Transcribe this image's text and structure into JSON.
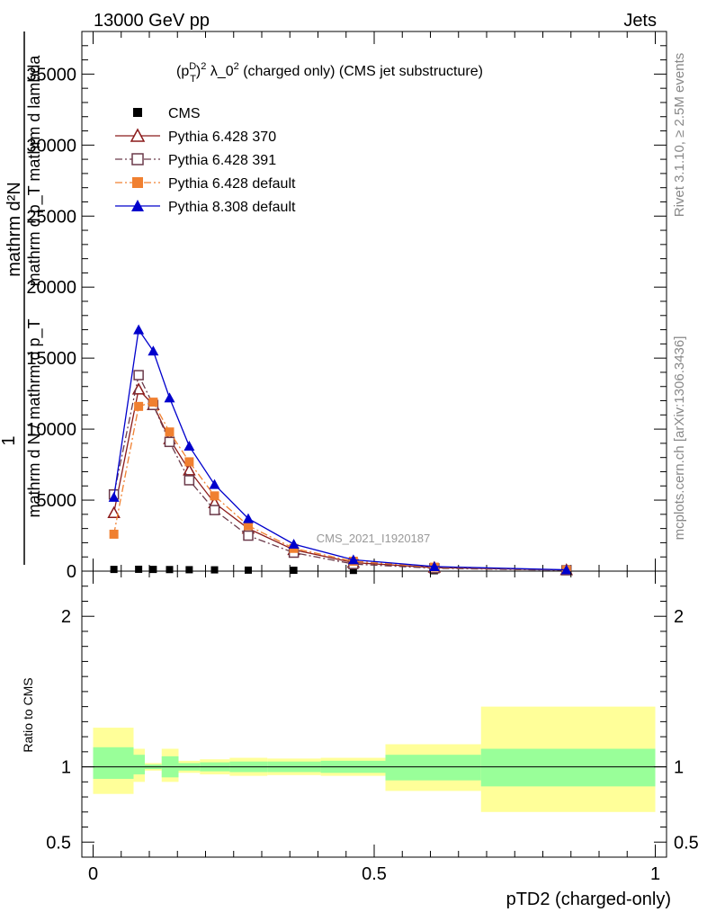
{
  "header": {
    "left": "13000 GeV pp",
    "right": "Jets"
  },
  "title": "(p_T^D)^2 λ_0^2 (charged only) (CMS jet substructure)",
  "title_parts": {
    "p": "(p",
    "sup1": "D",
    "sub1": "T",
    "close": ")",
    "sup2": "2",
    "mid": " λ_0",
    "sup3": "2",
    "tail": " (charged only) (CMS jet substructure)"
  },
  "ylabel_main": {
    "numer": "1          mathrm d²N",
    "denom": "mathrm d N / mathrm d p_T  mathrm d p_T mathrm d lambda",
    "line_top": "mathrm d²N",
    "line_mid": "mathrm d p_T mathrm d lambda",
    "line_one": "1",
    "line_den": "mathrm d N / mathrm d p_T"
  },
  "ylabel_ratio": "Ratio to CMS",
  "xlabel": "pTD2 (charged-only)",
  "side_text_top": "Rivet 3.1.10, ≥ 2.5M events",
  "side_text_bottom": "mcplots.cern.ch [arXiv:1306.3436]",
  "watermark": "CMS_2021_I1920187",
  "colors": {
    "cms": "#000000",
    "py370": "#8b1a1a",
    "py391": "#6b3a4a",
    "py6def": "#f08030",
    "py8def": "#0000cc",
    "band_inner": "#99ff99",
    "band_outer": "#ffff99"
  },
  "chart_data": [
    {
      "type": "line",
      "xlim": [
        -0.02,
        1.02
      ],
      "ylim": [
        0,
        38000
      ],
      "yticks": [
        0,
        5000,
        10000,
        15000,
        20000,
        25000,
        30000,
        35000
      ],
      "ytick_labels": [
        "0",
        "5000",
        "10000",
        "15000",
        "20000",
        "25000",
        "30000",
        "35000"
      ],
      "legend_position": "top-left",
      "x": [
        0.037,
        0.081,
        0.107,
        0.136,
        0.171,
        0.216,
        0.276,
        0.357,
        0.463,
        0.607,
        0.842
      ],
      "series": [
        {
          "name": "CMS",
          "marker": "square-filled",
          "values": [
            120,
            130,
            120,
            110,
            100,
            90,
            70,
            60,
            50,
            30,
            10
          ]
        },
        {
          "name": "Pythia 6.428 370",
          "marker": "triangle-open",
          "dash": "solid",
          "values": [
            4100,
            12800,
            11700,
            9300,
            7100,
            4800,
            3000,
            1500,
            600,
            250,
            80
          ]
        },
        {
          "name": "Pythia 6.428 391",
          "marker": "square-open",
          "dash": "dashdot",
          "values": [
            5400,
            13800,
            11700,
            9100,
            6400,
            4300,
            2500,
            1300,
            500,
            200,
            60
          ]
        },
        {
          "name": "Pythia 6.428 default",
          "marker": "square-filled",
          "dash": "dashdot",
          "values": [
            2600,
            11600,
            11900,
            9800,
            7700,
            5300,
            3200,
            1600,
            700,
            280,
            80
          ]
        },
        {
          "name": "Pythia 8.308 default",
          "marker": "triangle-filled",
          "dash": "solid",
          "values": [
            5200,
            17000,
            15500,
            12200,
            8800,
            6100,
            3700,
            1900,
            800,
            320,
            90
          ]
        }
      ]
    },
    {
      "type": "area",
      "ylabel": "Ratio to CMS",
      "xlabel": "pTD2 (charged-only)",
      "xlim": [
        -0.02,
        1.02
      ],
      "ylim": [
        0.4,
        2.3
      ],
      "xticks": [
        0,
        0.5,
        1
      ],
      "xtick_labels": [
        "0",
        "0.5",
        "1"
      ],
      "yticks": [
        0.5,
        1,
        2
      ],
      "ytick_labels": [
        "0.5",
        "1",
        "2"
      ],
      "bins": [
        {
          "lo": 0.0,
          "hi": 0.072,
          "inner": [
            0.92,
            1.13
          ],
          "outer": [
            0.82,
            1.26
          ]
        },
        {
          "lo": 0.072,
          "hi": 0.092,
          "inner": [
            0.95,
            1.08
          ],
          "outer": [
            0.9,
            1.12
          ]
        },
        {
          "lo": 0.092,
          "hi": 0.122,
          "inner": [
            0.985,
            1.015
          ],
          "outer": [
            0.975,
            1.025
          ]
        },
        {
          "lo": 0.122,
          "hi": 0.152,
          "inner": [
            0.93,
            1.07
          ],
          "outer": [
            0.9,
            1.12
          ]
        },
        {
          "lo": 0.152,
          "hi": 0.19,
          "inner": [
            0.975,
            1.025
          ],
          "outer": [
            0.96,
            1.04
          ]
        },
        {
          "lo": 0.19,
          "hi": 0.243,
          "inner": [
            0.97,
            1.03
          ],
          "outer": [
            0.95,
            1.05
          ]
        },
        {
          "lo": 0.243,
          "hi": 0.31,
          "inner": [
            0.965,
            1.035
          ],
          "outer": [
            0.94,
            1.06
          ]
        },
        {
          "lo": 0.31,
          "hi": 0.405,
          "inner": [
            0.965,
            1.035
          ],
          "outer": [
            0.945,
            1.055
          ]
        },
        {
          "lo": 0.405,
          "hi": 0.52,
          "inner": [
            0.96,
            1.04
          ],
          "outer": [
            0.94,
            1.06
          ]
        },
        {
          "lo": 0.52,
          "hi": 0.69,
          "inner": [
            0.91,
            1.08
          ],
          "outer": [
            0.84,
            1.15
          ]
        },
        {
          "lo": 0.69,
          "hi": 1.0,
          "inner": [
            0.87,
            1.12
          ],
          "outer": [
            0.7,
            1.4
          ]
        }
      ]
    }
  ]
}
